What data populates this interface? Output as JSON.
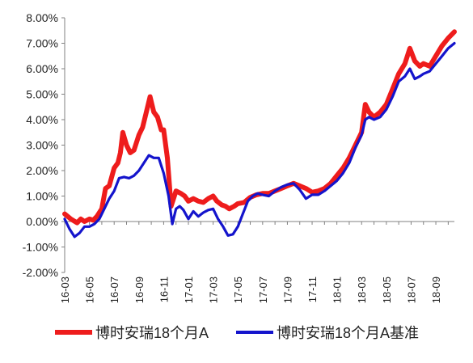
{
  "chart_data": {
    "type": "line",
    "title": "",
    "xlabel": "",
    "ylabel": "",
    "ylim": [
      -2.0,
      8.0
    ],
    "y_ticks": [
      "8.00%",
      "7.00%",
      "6.00%",
      "5.00%",
      "4.00%",
      "3.00%",
      "2.00%",
      "1.00%",
      "0.00%",
      "-1.00%",
      "-2.00%"
    ],
    "x_ticks": [
      "16-03",
      "16-05",
      "16-07",
      "16-09",
      "16-11",
      "17-01",
      "17-03",
      "17-05",
      "17-07",
      "17-09",
      "17-11",
      "18-01",
      "18-03",
      "18-05",
      "18-07",
      "18-09"
    ],
    "x_range": [
      0,
      31.5
    ],
    "grid": false,
    "legend_position": "bottom",
    "series": [
      {
        "name": "博时安瑞18个月A",
        "color": "#ee1c1c",
        "points": [
          [
            0,
            0.3
          ],
          [
            0.5,
            0.1
          ],
          [
            1,
            -0.05
          ],
          [
            1.3,
            0.1
          ],
          [
            1.6,
            0.0
          ],
          [
            2,
            0.1
          ],
          [
            2.3,
            0.05
          ],
          [
            2.6,
            0.2
          ],
          [
            3,
            0.5
          ],
          [
            3.3,
            1.3
          ],
          [
            3.6,
            1.4
          ],
          [
            4,
            2.1
          ],
          [
            4.3,
            2.3
          ],
          [
            4.5,
            2.7
          ],
          [
            4.7,
            3.5
          ],
          [
            5,
            3.0
          ],
          [
            5.3,
            2.7
          ],
          [
            5.6,
            2.8
          ],
          [
            6,
            3.4
          ],
          [
            6.3,
            3.7
          ],
          [
            6.6,
            4.3
          ],
          [
            6.9,
            4.9
          ],
          [
            7.2,
            4.3
          ],
          [
            7.5,
            4.1
          ],
          [
            7.8,
            3.6
          ],
          [
            8,
            3.6
          ],
          [
            8.3,
            2.5
          ],
          [
            8.6,
            0.6
          ],
          [
            9,
            1.2
          ],
          [
            9.4,
            1.1
          ],
          [
            9.7,
            1.0
          ],
          [
            10,
            0.8
          ],
          [
            10.4,
            0.9
          ],
          [
            10.8,
            0.8
          ],
          [
            11.2,
            0.75
          ],
          [
            11.6,
            0.9
          ],
          [
            12,
            1.0
          ],
          [
            12.3,
            0.8
          ],
          [
            12.7,
            0.65
          ],
          [
            13,
            0.6
          ],
          [
            13.3,
            0.5
          ],
          [
            13.7,
            0.6
          ],
          [
            14,
            0.7
          ],
          [
            14.5,
            0.75
          ],
          [
            15,
            0.95
          ],
          [
            15.5,
            1.05
          ],
          [
            16,
            1.1
          ],
          [
            16.5,
            1.1
          ],
          [
            17,
            1.2
          ],
          [
            17.5,
            1.3
          ],
          [
            18,
            1.4
          ],
          [
            18.5,
            1.5
          ],
          [
            19,
            1.4
          ],
          [
            19.5,
            1.3
          ],
          [
            20,
            1.15
          ],
          [
            20.5,
            1.2
          ],
          [
            21,
            1.3
          ],
          [
            21.5,
            1.5
          ],
          [
            22,
            1.8
          ],
          [
            22.5,
            2.1
          ],
          [
            23,
            2.5
          ],
          [
            23.5,
            3.0
          ],
          [
            24,
            3.5
          ],
          [
            24.3,
            4.6
          ],
          [
            24.6,
            4.3
          ],
          [
            25,
            4.1
          ],
          [
            25.5,
            4.3
          ],
          [
            26,
            4.6
          ],
          [
            26.5,
            5.2
          ],
          [
            27,
            5.8
          ],
          [
            27.5,
            6.2
          ],
          [
            27.9,
            6.8
          ],
          [
            28.3,
            6.3
          ],
          [
            28.7,
            6.1
          ],
          [
            29,
            6.2
          ],
          [
            29.5,
            6.1
          ],
          [
            30,
            6.5
          ],
          [
            30.5,
            6.9
          ],
          [
            31,
            7.2
          ],
          [
            31.5,
            7.45
          ]
        ]
      },
      {
        "name": "博时安瑞18个月A基准",
        "color": "#1414cc",
        "points": [
          [
            0,
            0.1
          ],
          [
            0.4,
            -0.3
          ],
          [
            0.8,
            -0.6
          ],
          [
            1.2,
            -0.45
          ],
          [
            1.6,
            -0.2
          ],
          [
            2,
            -0.2
          ],
          [
            2.4,
            -0.1
          ],
          [
            2.8,
            0.1
          ],
          [
            3.2,
            0.5
          ],
          [
            3.6,
            0.9
          ],
          [
            4,
            1.2
          ],
          [
            4.4,
            1.7
          ],
          [
            4.8,
            1.75
          ],
          [
            5.2,
            1.7
          ],
          [
            5.6,
            1.8
          ],
          [
            6,
            2.0
          ],
          [
            6.4,
            2.3
          ],
          [
            6.8,
            2.6
          ],
          [
            7.2,
            2.5
          ],
          [
            7.6,
            2.5
          ],
          [
            8,
            1.9
          ],
          [
            8.4,
            1.0
          ],
          [
            8.7,
            -0.1
          ],
          [
            9,
            0.5
          ],
          [
            9.3,
            0.6
          ],
          [
            9.6,
            0.45
          ],
          [
            10,
            0.1
          ],
          [
            10.4,
            0.4
          ],
          [
            10.8,
            0.2
          ],
          [
            11.2,
            0.35
          ],
          [
            11.6,
            0.45
          ],
          [
            12,
            0.5
          ],
          [
            12.4,
            0.1
          ],
          [
            12.8,
            -0.2
          ],
          [
            13.2,
            -0.55
          ],
          [
            13.6,
            -0.5
          ],
          [
            14,
            -0.2
          ],
          [
            14.4,
            0.3
          ],
          [
            14.8,
            0.8
          ],
          [
            15.2,
            1.0
          ],
          [
            15.6,
            1.1
          ],
          [
            16,
            1.05
          ],
          [
            16.5,
            1.0
          ],
          [
            17,
            1.2
          ],
          [
            17.5,
            1.35
          ],
          [
            18,
            1.45
          ],
          [
            18.5,
            1.5
          ],
          [
            19,
            1.25
          ],
          [
            19.5,
            0.9
          ],
          [
            20,
            1.05
          ],
          [
            20.5,
            1.05
          ],
          [
            21,
            1.2
          ],
          [
            21.5,
            1.4
          ],
          [
            22,
            1.6
          ],
          [
            22.5,
            1.9
          ],
          [
            23,
            2.3
          ],
          [
            23.5,
            2.9
          ],
          [
            24,
            3.4
          ],
          [
            24.3,
            4.0
          ],
          [
            24.6,
            4.1
          ],
          [
            25,
            4.0
          ],
          [
            25.5,
            4.1
          ],
          [
            26,
            4.4
          ],
          [
            26.5,
            4.9
          ],
          [
            27,
            5.5
          ],
          [
            27.5,
            5.7
          ],
          [
            27.9,
            6.0
          ],
          [
            28.3,
            5.6
          ],
          [
            28.7,
            5.7
          ],
          [
            29,
            5.8
          ],
          [
            29.5,
            5.9
          ],
          [
            30,
            6.2
          ],
          [
            30.5,
            6.5
          ],
          [
            31,
            6.8
          ],
          [
            31.5,
            7.0
          ]
        ]
      }
    ]
  }
}
